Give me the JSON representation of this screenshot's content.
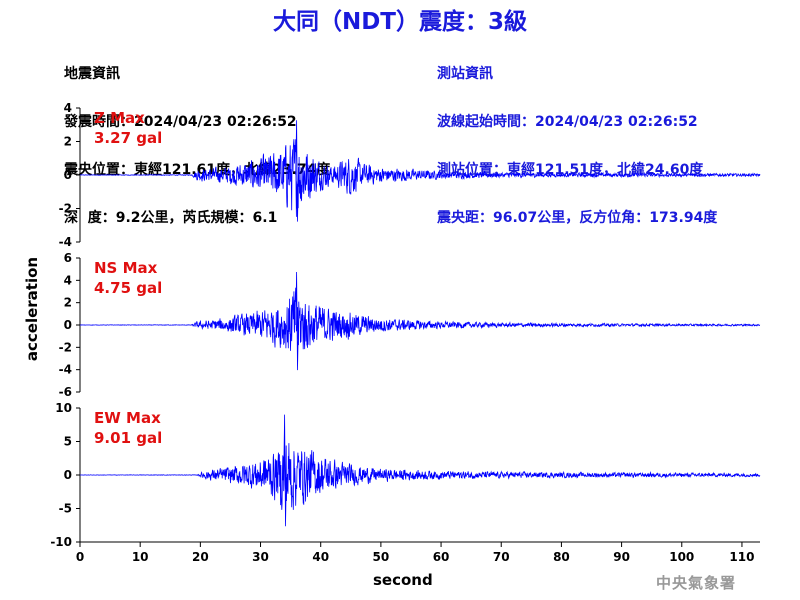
{
  "header": {
    "title": "大同（NDT）震度：3級"
  },
  "earthquake_info": {
    "heading": "地震資訊",
    "time": "發震時間：2024/04/23 02:26:52",
    "epicenter": "震央位置：東經121.61度，北緯23.74度",
    "depth_mag": "深  度：9.2公里，芮氏規模：6.1"
  },
  "station_info": {
    "heading": "測站資訊",
    "wave_start": "波線起始時間：2024/04/23 02:26:52",
    "station_pos": "測站位置：東經121.51度，北緯24.60度",
    "distance": "震央距：96.07公里，反方位角：173.94度"
  },
  "agency": "中央氣象署",
  "chart_data": {
    "type": "line",
    "xlabel": "second",
    "ylabel": "acceleration",
    "xlim": [
      0,
      113
    ],
    "xticks": [
      0,
      10,
      20,
      30,
      40,
      50,
      60,
      70,
      80,
      90,
      100,
      110
    ],
    "line_color": "#0000ff",
    "series": [
      {
        "name": "Z",
        "max_label": "Z Max",
        "max_value_label": "3.27 gal",
        "max_value": 3.27,
        "ylim": [
          -4,
          4
        ],
        "yticks": [
          -4,
          -2,
          0,
          2,
          4
        ],
        "envelope": [
          [
            0,
            0.02
          ],
          [
            18.5,
            0.03
          ],
          [
            19.5,
            0.45
          ],
          [
            24,
            0.6
          ],
          [
            29,
            1.2
          ],
          [
            33,
            1.9
          ],
          [
            36,
            3.2
          ],
          [
            38,
            2.0
          ],
          [
            40,
            1.1
          ],
          [
            42,
            0.7
          ],
          [
            45,
            1.6
          ],
          [
            47,
            0.9
          ],
          [
            50,
            0.6
          ],
          [
            55,
            0.45
          ],
          [
            60,
            0.3
          ],
          [
            70,
            0.2
          ],
          [
            80,
            0.15
          ],
          [
            90,
            0.15
          ],
          [
            100,
            0.12
          ],
          [
            113,
            0.1
          ]
        ]
      },
      {
        "name": "NS",
        "max_label": "NS Max",
        "max_value_label": "4.75 gal",
        "max_value": 4.75,
        "ylim": [
          -6,
          6
        ],
        "yticks": [
          -6,
          -4,
          -2,
          0,
          2,
          4,
          6
        ],
        "envelope": [
          [
            0,
            0.02
          ],
          [
            18.5,
            0.03
          ],
          [
            19.5,
            0.4
          ],
          [
            24,
            0.8
          ],
          [
            29,
            1.5
          ],
          [
            33,
            2.5
          ],
          [
            36,
            4.5
          ],
          [
            38,
            3.0
          ],
          [
            41,
            2.0
          ],
          [
            45,
            1.5
          ],
          [
            48,
            1.0
          ],
          [
            52,
            0.7
          ],
          [
            60,
            0.4
          ],
          [
            70,
            0.25
          ],
          [
            80,
            0.2
          ],
          [
            90,
            0.15
          ],
          [
            100,
            0.12
          ],
          [
            113,
            0.1
          ]
        ]
      },
      {
        "name": "EW",
        "max_label": "EW Max",
        "max_value_label": "9.01 gal",
        "max_value": 9.01,
        "ylim": [
          -10,
          10
        ],
        "yticks": [
          -10,
          -5,
          0,
          5,
          10
        ],
        "envelope": [
          [
            0,
            0.03
          ],
          [
            19.5,
            0.05
          ],
          [
            20.5,
            0.8
          ],
          [
            25,
            1.6
          ],
          [
            29,
            2.8
          ],
          [
            33,
            5.0
          ],
          [
            34,
            9.0
          ],
          [
            36,
            6.0
          ],
          [
            39,
            4.5
          ],
          [
            42,
            3.0
          ],
          [
            45,
            2.0
          ],
          [
            50,
            1.2
          ],
          [
            60,
            0.8
          ],
          [
            70,
            0.6
          ],
          [
            80,
            0.5
          ],
          [
            90,
            0.45
          ],
          [
            100,
            0.4
          ],
          [
            113,
            0.3
          ]
        ]
      }
    ]
  }
}
